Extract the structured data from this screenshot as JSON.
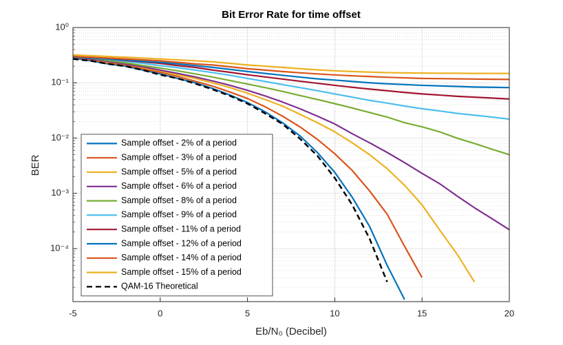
{
  "chart_data": {
    "type": "line",
    "title": "Bit Error Rate for time offset",
    "xlabel": "Eb/N₀ (Decibel)",
    "ylabel": "BER",
    "log_y": true,
    "grid": true,
    "minor_grid": true,
    "legend": "lower-left",
    "xlim": [
      -5,
      20
    ],
    "xticks": [
      -5,
      0,
      5,
      10,
      15,
      20
    ],
    "ylim": [
      1.1e-05,
      1
    ],
    "yticks": [
      {
        "value": 0.0001,
        "label": "10⁻⁴"
      },
      {
        "value": 0.001,
        "label": "10⁻³"
      },
      {
        "value": 0.01,
        "label": "10⁻²"
      },
      {
        "value": 0.1,
        "label": "10⁻¹"
      },
      {
        "value": 1,
        "label": "10⁰"
      }
    ],
    "yminorticks": [
      2e-05,
      3e-05,
      4e-05,
      5e-05,
      6e-05,
      7e-05,
      8e-05,
      9e-05,
      0.0002,
      0.0003,
      0.0004,
      0.0005,
      0.0006,
      0.0007,
      0.0008,
      0.0009,
      0.002,
      0.003,
      0.004,
      0.005,
      0.006,
      0.007,
      0.008,
      0.009,
      0.02,
      0.03,
      0.04,
      0.05,
      0.06,
      0.07,
      0.08,
      0.09,
      0.2,
      0.3,
      0.4,
      0.5,
      0.6,
      0.7,
      0.8,
      0.9
    ],
    "x": [
      -5,
      -4,
      -3,
      -2,
      -1,
      0,
      1,
      2,
      3,
      4,
      5,
      6,
      7,
      8,
      9,
      10,
      11,
      12,
      13,
      14,
      15,
      16,
      17,
      18,
      19,
      20
    ],
    "series": [
      {
        "name": "Sample offset - 2% of a period",
        "color": "#0072BD",
        "values": [
          0.28,
          0.25,
          0.22,
          0.2,
          0.17,
          0.145,
          0.12,
          0.1,
          0.079,
          0.06,
          0.044,
          0.03,
          0.019,
          0.011,
          0.0055,
          0.0024,
          0.00085,
          0.00025,
          5e-05,
          1.2e-05,
          null,
          null,
          null,
          null,
          null,
          null
        ]
      },
      {
        "name": "Sample offset - 3% of a period",
        "color": "#D95319",
        "values": [
          0.29,
          0.26,
          0.23,
          0.21,
          0.18,
          0.155,
          0.13,
          0.107,
          0.087,
          0.068,
          0.052,
          0.037,
          0.025,
          0.016,
          0.0095,
          0.0052,
          0.0026,
          0.0011,
          0.00042,
          0.00011,
          3e-05,
          null,
          null,
          null,
          null,
          null
        ]
      },
      {
        "name": "Sample offset - 5% of a period",
        "color": "#EDB120",
        "values": [
          0.3,
          0.27,
          0.24,
          0.22,
          0.19,
          0.165,
          0.14,
          0.12,
          0.1,
          0.082,
          0.065,
          0.05,
          0.038,
          0.027,
          0.019,
          0.013,
          0.0082,
          0.005,
          0.0028,
          0.0014,
          0.00062,
          0.00022,
          8e-05,
          2.5e-05,
          null,
          null
        ]
      },
      {
        "name": "Sample offset - 6% of a period",
        "color": "#7E2F8E",
        "values": [
          0.3,
          0.27,
          0.245,
          0.22,
          0.195,
          0.17,
          0.148,
          0.128,
          0.108,
          0.09,
          0.073,
          0.058,
          0.045,
          0.034,
          0.025,
          0.018,
          0.012,
          0.0082,
          0.0055,
          0.0036,
          0.0023,
          0.0015,
          0.0009,
          0.00055,
          0.00035,
          0.00022
        ]
      },
      {
        "name": "Sample offset - 8% of a period",
        "color": "#77AC30",
        "values": [
          0.3,
          0.28,
          0.255,
          0.23,
          0.205,
          0.185,
          0.165,
          0.145,
          0.127,
          0.11,
          0.095,
          0.082,
          0.07,
          0.059,
          0.05,
          0.042,
          0.035,
          0.029,
          0.024,
          0.019,
          0.016,
          0.013,
          0.01,
          0.008,
          0.0063,
          0.005
        ]
      },
      {
        "name": "Sample offset - 9% of a period",
        "color": "#4DBEEE",
        "values": [
          0.3,
          0.285,
          0.265,
          0.245,
          0.225,
          0.205,
          0.188,
          0.17,
          0.153,
          0.137,
          0.12,
          0.106,
          0.093,
          0.082,
          0.072,
          0.063,
          0.055,
          0.048,
          0.043,
          0.038,
          0.034,
          0.031,
          0.028,
          0.026,
          0.024,
          0.022
        ]
      },
      {
        "name": "Sample offset - 11% of a period",
        "color": "#A2142F",
        "values": [
          0.3,
          0.285,
          0.27,
          0.255,
          0.24,
          0.225,
          0.205,
          0.19,
          0.17,
          0.155,
          0.14,
          0.128,
          0.117,
          0.107,
          0.098,
          0.09,
          0.083,
          0.077,
          0.072,
          0.067,
          0.063,
          0.06,
          0.057,
          0.055,
          0.053,
          0.051
        ]
      },
      {
        "name": "Sample offset - 12% of a period",
        "color": "#0072BD",
        "values": [
          0.29,
          0.28,
          0.27,
          0.26,
          0.245,
          0.235,
          0.22,
          0.205,
          0.19,
          0.175,
          0.16,
          0.148,
          0.137,
          0.127,
          0.118,
          0.112,
          0.106,
          0.1,
          0.096,
          0.093,
          0.09,
          0.088,
          0.086,
          0.084,
          0.083,
          0.082
        ]
      },
      {
        "name": "Sample offset - 14% of a period",
        "color": "#D95319",
        "values": [
          0.3,
          0.29,
          0.28,
          0.27,
          0.26,
          0.25,
          0.235,
          0.22,
          0.21,
          0.195,
          0.18,
          0.17,
          0.16,
          0.152,
          0.145,
          0.139,
          0.134,
          0.13,
          0.126,
          0.123,
          0.12,
          0.119,
          0.118,
          0.117,
          0.116,
          0.115
        ]
      },
      {
        "name": "Sample offset - 15% of a period",
        "color": "#EDB120",
        "values": [
          0.32,
          0.31,
          0.3,
          0.29,
          0.28,
          0.27,
          0.26,
          0.25,
          0.24,
          0.225,
          0.21,
          0.2,
          0.19,
          0.18,
          0.172,
          0.165,
          0.16,
          0.156,
          0.153,
          0.151,
          0.15,
          0.149,
          0.149,
          0.148,
          0.148,
          0.148
        ]
      },
      {
        "name": "QAM-16 Theoretical",
        "color": "#000000",
        "dashed": true,
        "values": [
          0.27,
          0.25,
          0.22,
          0.2,
          0.17,
          0.14,
          0.12,
          0.097,
          0.076,
          0.058,
          0.042,
          0.028,
          0.018,
          0.0098,
          0.0048,
          0.0019,
          0.00062,
          0.00015,
          2.5e-05,
          null,
          null,
          null,
          null,
          null,
          null,
          null
        ]
      }
    ]
  }
}
